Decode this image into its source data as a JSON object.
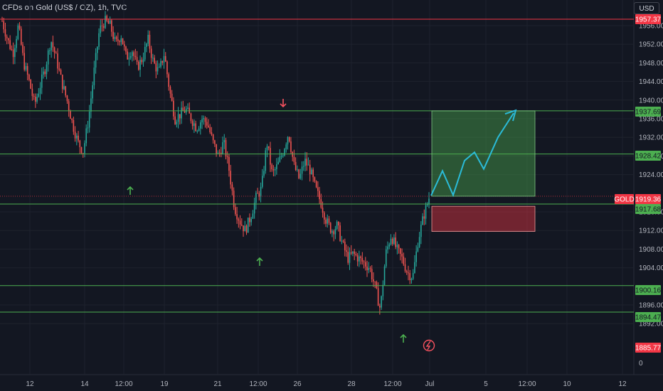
{
  "header": {
    "title": "CFDs on Gold (US$ / OZ), 1h, TVC"
  },
  "currency_button": {
    "label": "USD"
  },
  "chart_data": {
    "type": "candlestick",
    "symbol": "GOLD",
    "ylim": [
      1885,
      1959
    ],
    "y_ticks": [
      1956,
      1952,
      1948,
      1944,
      1940,
      1936,
      1932,
      1928,
      1924,
      1916,
      1912,
      1908,
      1904,
      1896,
      1892
    ],
    "x_ticks": [
      "12",
      "14",
      "12:00",
      "19",
      "21",
      "12:00",
      "26",
      "28",
      "12:00",
      "Jul",
      "5",
      "12:00",
      "10",
      "12"
    ],
    "price_labels": [
      {
        "name": "top-level",
        "value": "1957.37",
        "color": "#f23645"
      },
      {
        "name": "resistance-1937",
        "value": "1937.69",
        "color": "#4caf50"
      },
      {
        "name": "resistance-1928",
        "value": "1928.42",
        "color": "#4caf50"
      },
      {
        "name": "current-price",
        "value": "1919.36",
        "color": "#f23645",
        "tag": "GOLD"
      },
      {
        "name": "support-1917",
        "value": "1917.68",
        "color": "#4caf50"
      },
      {
        "name": "support-1900",
        "value": "1900.16",
        "color": "#4caf50"
      },
      {
        "name": "support-1894",
        "value": "1894.47",
        "color": "#4caf50"
      },
      {
        "name": "bottom-level",
        "value": "1885.77",
        "color": "#f23645"
      }
    ],
    "horizontal_lines": [
      {
        "value": 1957.37,
        "color": "#f23645"
      },
      {
        "value": 1937.69,
        "color": "#4caf50"
      },
      {
        "value": 1928.42,
        "color": "#4caf50"
      },
      {
        "value": 1917.68,
        "color": "#4caf50"
      },
      {
        "value": 1900.16,
        "color": "#4caf50"
      },
      {
        "value": 1894.47,
        "color": "#4caf50"
      }
    ],
    "long_position": {
      "entry": 1919.36,
      "target": 1937.69,
      "stop": 1911.8
    },
    "projection_path": [
      1919.5,
      1924.8,
      1919.6,
      1927,
      1928.8,
      1925.2,
      1932,
      1937.2
    ],
    "price_path": [
      1957,
      1953,
      1950,
      1956,
      1948,
      1944,
      1939,
      1943,
      1947,
      1953,
      1949,
      1944,
      1940,
      1935,
      1931,
      1929,
      1936,
      1946,
      1955,
      1957,
      1956,
      1952,
      1954,
      1949,
      1951,
      1947,
      1949,
      1953,
      1948,
      1946,
      1950,
      1942,
      1936,
      1937,
      1938,
      1936,
      1934,
      1936,
      1935,
      1931,
      1928,
      1931,
      1925,
      1917,
      1914,
      1912,
      1915,
      1919,
      1921,
      1931,
      1924,
      1926,
      1929,
      1933,
      1926,
      1923,
      1927,
      1925,
      1921,
      1918,
      1914,
      1912,
      1913,
      1909,
      1906,
      1907,
      1906,
      1905,
      1904,
      1900,
      1895,
      1907,
      1911,
      1908,
      1906,
      1903,
      1902,
      1910,
      1915,
      1919
    ],
    "arrows": [
      {
        "direction": "up",
        "color": "#4caf50"
      },
      {
        "direction": "down",
        "color": "#f7525f"
      },
      {
        "direction": "up",
        "color": "#4caf50"
      },
      {
        "direction": "up",
        "color": "#4caf50"
      }
    ],
    "colors": {
      "up": "#26a69a",
      "down": "#ef5350",
      "background": "#131722",
      "target_zone": "#4caf50",
      "stop_zone": "#f23645"
    }
  }
}
